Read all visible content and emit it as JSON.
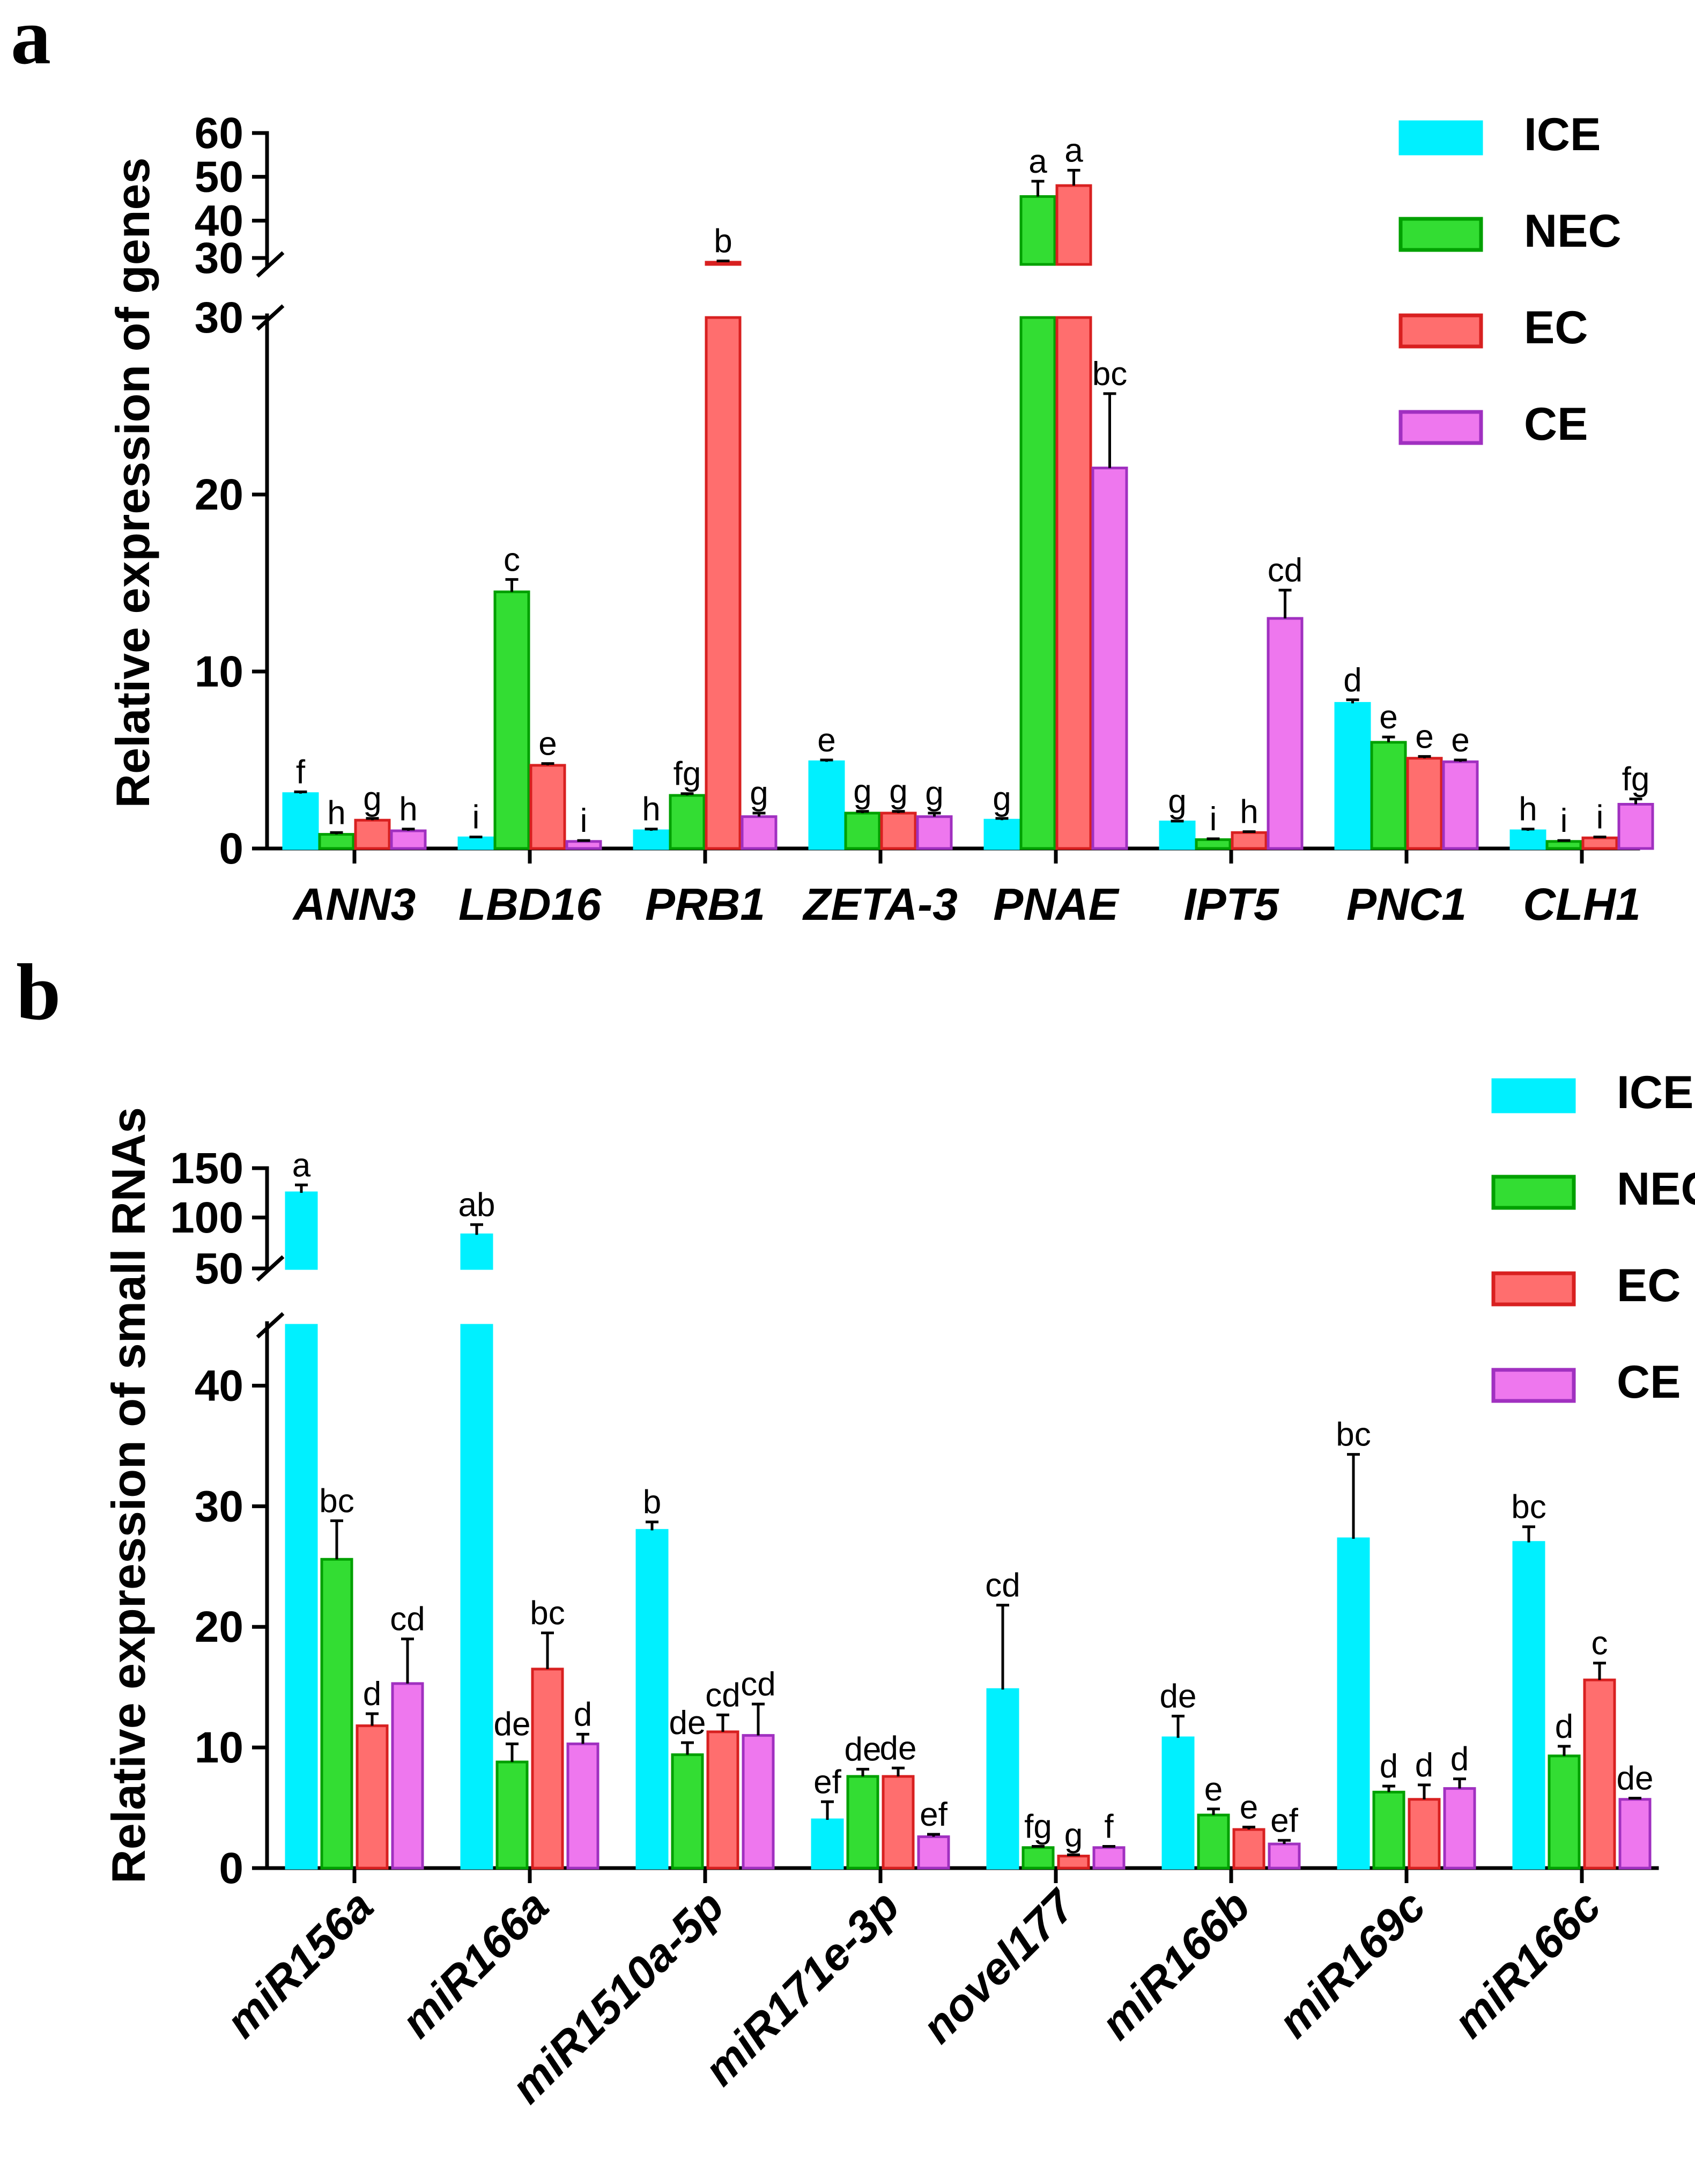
{
  "legend": {
    "series": [
      {
        "name": "ICE",
        "fill": "#00F0FF",
        "stroke": "#00F0FF"
      },
      {
        "name": "NEC",
        "fill": "#33DD33",
        "stroke": "#00A000"
      },
      {
        "name": "EC",
        "fill": "#FF6E6E",
        "stroke": "#D82020"
      },
      {
        "name": "CE",
        "fill": "#EE77EE",
        "stroke": "#A030C0"
      }
    ]
  },
  "chart_data": [
    {
      "panel_label": "a",
      "type": "bar",
      "ylabel": "Relative expression of genes",
      "categories": [
        "ANN3",
        "LBD16",
        "PRB1",
        "ZETA-3",
        "PNAE",
        "IPT5",
        "PNC1",
        "CLH1"
      ],
      "y_ticks_lower": [
        "0",
        "10",
        "20",
        "30"
      ],
      "y_ticks_upper": [
        "30",
        "40",
        "50",
        "60"
      ],
      "ylim_lower": [
        0,
        30
      ],
      "ylim_upper": [
        30,
        60
      ],
      "series": [
        {
          "name": "ICE",
          "values": [
            3.1,
            0.6,
            1.0,
            4.9,
            1.6,
            1.5,
            8.2,
            1.0
          ],
          "errors": [
            0.1,
            0.05,
            0.1,
            0.1,
            0.1,
            0.05,
            0.2,
            0.1
          ],
          "letters": [
            "f",
            "i",
            "h",
            "e",
            "g",
            "g",
            "d",
            "h"
          ]
        },
        {
          "name": "NEC",
          "values": [
            0.8,
            14.5,
            3.0,
            2.0,
            45.5,
            0.5,
            6.0,
            0.4
          ],
          "errors": [
            0.1,
            0.7,
            0.1,
            0.1,
            3.5,
            0.05,
            0.3,
            0.05
          ],
          "letters": [
            "h",
            "c",
            "fg",
            "g",
            "a",
            "i",
            "e",
            "i"
          ]
        },
        {
          "name": "EC",
          "values": [
            1.6,
            4.7,
            30.5,
            2.0,
            48.0,
            0.9,
            5.1,
            0.6
          ],
          "errors": [
            0.1,
            0.1,
            0.3,
            0.1,
            3.5,
            0.05,
            0.1,
            0.05
          ],
          "letters": [
            "g",
            "e",
            "b",
            "g",
            "a",
            "h",
            "e",
            "i"
          ]
        },
        {
          "name": "CE",
          "values": [
            1.0,
            0.4,
            1.8,
            1.8,
            21.5,
            13.0,
            4.9,
            2.5
          ],
          "errors": [
            0.1,
            0.05,
            0.2,
            0.2,
            4.2,
            1.6,
            0.1,
            0.3
          ],
          "letters": [
            "h",
            "i",
            "g",
            "g",
            "bc",
            "cd",
            "e",
            "fg"
          ]
        }
      ]
    },
    {
      "panel_label": "b",
      "type": "bar",
      "ylabel": "Relative expression of small RNAs",
      "categories": [
        "miR156a",
        "miR166a",
        "miR1510a-5p",
        "miR171e-3p",
        "novel177",
        "miR166b",
        "miR169c",
        "miR166c"
      ],
      "y_ticks_lower": [
        "0",
        "10",
        "20",
        "30",
        "40"
      ],
      "y_ticks_upper": [
        "50",
        "100",
        "150"
      ],
      "ylim_lower": [
        0,
        45
      ],
      "ylim_upper": [
        45,
        150
      ],
      "series": [
        {
          "name": "ICE",
          "values": [
            125,
            83,
            28.0,
            4.0,
            14.8,
            10.8,
            27.3,
            27.0
          ],
          "errors": [
            8,
            10,
            0.7,
            1.5,
            7.0,
            1.8,
            7.0,
            1.3
          ],
          "letters": [
            "a",
            "ab",
            "b",
            "ef",
            "cd",
            "de",
            "bc",
            "bc"
          ]
        },
        {
          "name": "NEC",
          "values": [
            25.6,
            8.8,
            9.4,
            7.6,
            1.7,
            4.4,
            6.3,
            9.3
          ],
          "errors": [
            3.2,
            1.5,
            1.0,
            0.6,
            0.1,
            0.5,
            0.5,
            0.8
          ],
          "letters": [
            "bc",
            "de",
            "de",
            "de",
            "fg",
            "e",
            "d",
            "d"
          ]
        },
        {
          "name": "EC",
          "values": [
            11.8,
            16.5,
            11.3,
            7.6,
            1.0,
            3.2,
            5.7,
            15.6
          ],
          "errors": [
            1.0,
            3.0,
            1.4,
            0.7,
            0.1,
            0.2,
            1.2,
            1.4
          ],
          "letters": [
            "d",
            "bc",
            "cd",
            "de",
            "g",
            "e",
            "d",
            "c"
          ]
        },
        {
          "name": "CE",
          "values": [
            15.3,
            10.3,
            11.0,
            2.6,
            1.7,
            2.0,
            6.6,
            5.7
          ],
          "errors": [
            3.7,
            0.8,
            2.6,
            0.2,
            0.1,
            0.3,
            0.8,
            0.1
          ],
          "letters": [
            "cd",
            "d",
            "cd",
            "ef",
            "f",
            "ef",
            "d",
            "de"
          ]
        }
      ]
    }
  ]
}
